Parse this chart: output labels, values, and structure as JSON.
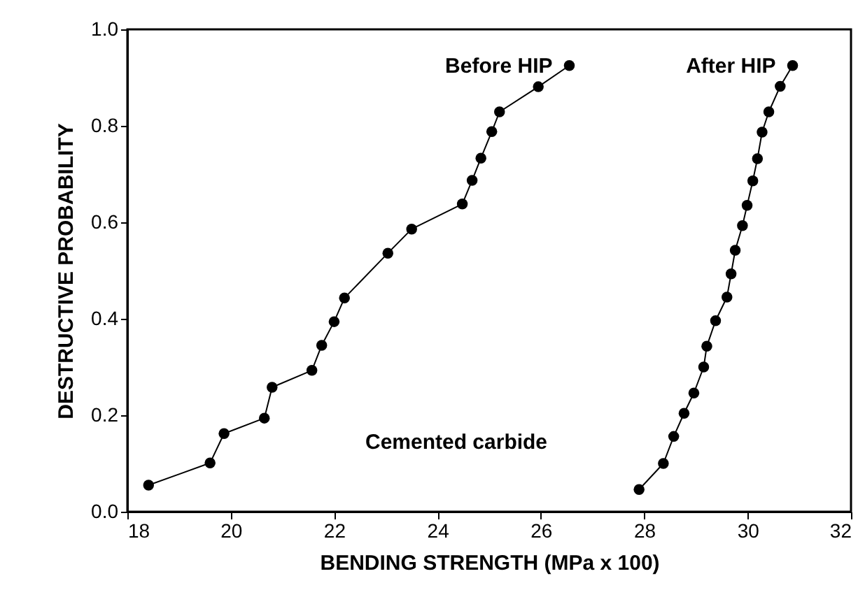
{
  "chart_data": {
    "type": "line",
    "xlabel": "BENDING STRENGTH  (MPa x 100)",
    "ylabel": "DESTRUCTIVE PROBABILITY",
    "xlim": [
      18,
      32
    ],
    "xticks": [
      18,
      20,
      22,
      24,
      26,
      28,
      30,
      32
    ],
    "ylim": [
      0,
      1
    ],
    "yticks": [
      {
        "value": 0,
        "label": "0.0"
      },
      {
        "value": 0.2,
        "label": "0.2"
      },
      {
        "value": 0.4,
        "label": "0.4"
      },
      {
        "value": 0.6,
        "label": "0.6"
      },
      {
        "value": 0.8,
        "label": "0.8"
      },
      {
        "value": 1,
        "label": "1.0"
      }
    ],
    "grid": false,
    "legend": false,
    "marker": "circle",
    "line_style": "solid",
    "annotations": [
      "Cemented carbide"
    ],
    "series": [
      {
        "name": "Before HIP",
        "color": "#000000",
        "x": [
          18.41,
          19.6,
          19.87,
          20.65,
          20.8,
          21.57,
          21.76,
          22.0,
          22.2,
          23.04,
          23.5,
          24.48,
          24.67,
          24.84,
          25.05,
          25.2,
          25.95,
          26.55
        ],
        "values": [
          0.055,
          0.101,
          0.162,
          0.194,
          0.258,
          0.293,
          0.345,
          0.394,
          0.443,
          0.536,
          0.586,
          0.638,
          0.687,
          0.733,
          0.788,
          0.829,
          0.881,
          0.925
        ]
      },
      {
        "name": "After HIP",
        "color": "#000000",
        "x": [
          27.9,
          28.37,
          28.57,
          28.77,
          28.96,
          29.15,
          29.21,
          29.38,
          29.6,
          29.68,
          29.76,
          29.9,
          29.99,
          30.1,
          30.19,
          30.28,
          30.41,
          30.63,
          30.87
        ],
        "values": [
          0.046,
          0.1,
          0.156,
          0.204,
          0.246,
          0.3,
          0.343,
          0.396,
          0.445,
          0.493,
          0.542,
          0.593,
          0.635,
          0.686,
          0.732,
          0.787,
          0.829,
          0.882,
          0.925
        ]
      }
    ]
  }
}
